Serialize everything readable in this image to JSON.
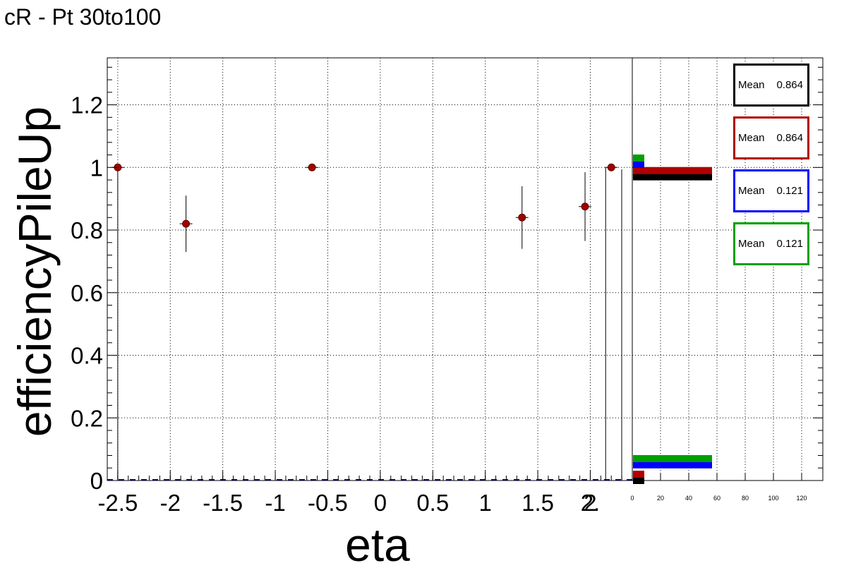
{
  "title": "cR - Pt 30to100",
  "chart_data": [
    {
      "type": "scatter",
      "title": "cR - Pt 30to100",
      "xlabel": "eta",
      "ylabel": "efficiencyPileUp",
      "xlim": [
        -2.6,
        2.4
      ],
      "ylim": [
        0,
        1.35
      ],
      "grid": true,
      "x_ticks": [
        "-2.5",
        "-2",
        "-1.5",
        "-1",
        "-0.5",
        "0",
        "0.5",
        "1",
        "1.5",
        "2",
        "2."
      ],
      "y_ticks": [
        "0",
        "0.2",
        "0.4",
        "0.6",
        "0.8",
        "1",
        "1.2"
      ],
      "series": [
        {
          "color": "#a00000",
          "points": [
            {
              "x": -2.5,
              "y": 1.0,
              "err": 0.0
            },
            {
              "x": -1.85,
              "y": 0.82,
              "err": 0.09
            },
            {
              "x": -0.65,
              "y": 1.0,
              "err": 0.0
            },
            {
              "x": 1.35,
              "y": 0.84,
              "err": 0.1
            },
            {
              "x": 1.95,
              "y": 0.875,
              "err": 0.11
            },
            {
              "x": 2.2,
              "y": 1.0,
              "err": 0.0
            }
          ]
        }
      ],
      "baseline_color": "#0000cc"
    },
    {
      "type": "bar",
      "orientation": "horizontal",
      "xlim": [
        0,
        135
      ],
      "ylim": [
        0,
        1.35
      ],
      "grid": true,
      "x_ticks": [
        "0",
        "20",
        "40",
        "60",
        "80",
        "100",
        "120"
      ],
      "series": [
        {
          "color": "#000000",
          "bars": [
            {
              "y": 0.0,
              "value": 8
            },
            {
              "y": 0.97,
              "value": 56
            }
          ]
        },
        {
          "color": "#b00000",
          "bars": [
            {
              "y": 0.02,
              "value": 8
            },
            {
              "y": 0.99,
              "value": 56
            }
          ]
        },
        {
          "color": "#0000ff",
          "bars": [
            {
              "y": 1.01,
              "value": 8
            },
            {
              "y": 0.05,
              "value": 56
            }
          ]
        },
        {
          "color": "#00a000",
          "bars": [
            {
              "y": 1.03,
              "value": 8
            },
            {
              "y": 0.07,
              "value": 56
            }
          ]
        }
      ],
      "stats": [
        {
          "label": "Mean",
          "value": "0.864",
          "color": "#000000"
        },
        {
          "label": "Mean",
          "value": "0.864",
          "color": "#b00000"
        },
        {
          "label": "Mean",
          "value": "0.121",
          "color": "#0000ff"
        },
        {
          "label": "Mean",
          "value": "0.121",
          "color": "#00a000"
        }
      ]
    }
  ]
}
